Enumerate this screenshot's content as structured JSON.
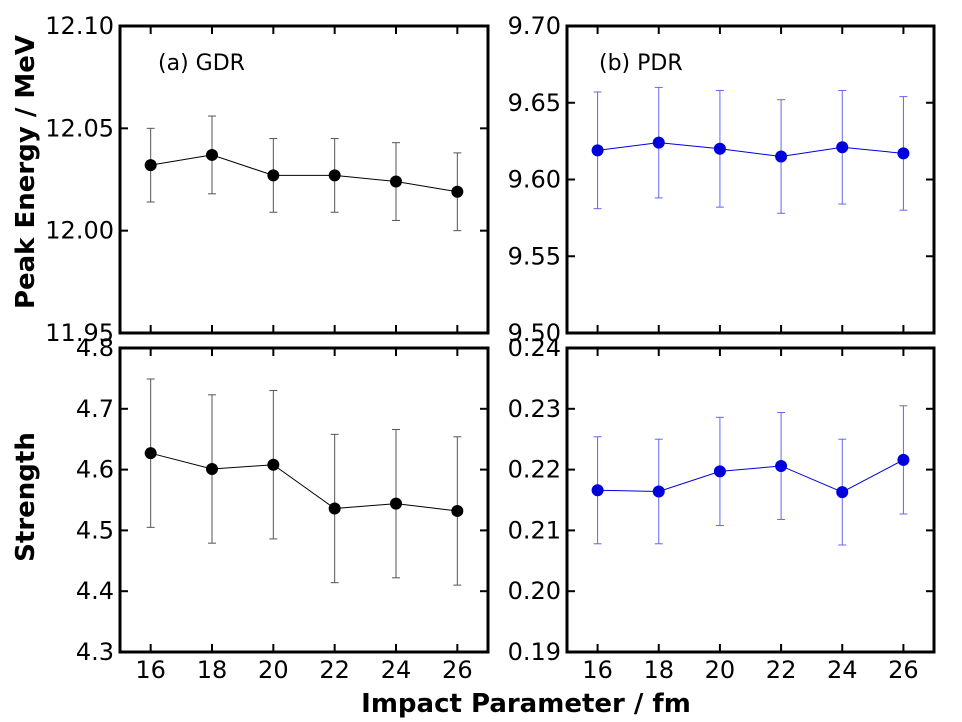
{
  "figure": {
    "xlabel": "Impact Parameter / fm",
    "ylabel_top": "Peak Energy / MeV",
    "ylabel_bottom": "Strength"
  },
  "chart_data": [
    {
      "type": "line",
      "id": "a",
      "label": "(a) GDR",
      "color": "#000000",
      "x": [
        16,
        18,
        20,
        22,
        24,
        26
      ],
      "y": [
        12.032,
        12.037,
        12.027,
        12.027,
        12.024,
        12.019
      ],
      "yerr": [
        0.018,
        0.019,
        0.018,
        0.018,
        0.019,
        0.019
      ],
      "xlim": [
        15,
        27
      ],
      "ylim": [
        11.95,
        12.1
      ],
      "xticks": [
        16,
        18,
        20,
        22,
        24,
        26
      ],
      "yticks": [
        11.95,
        12.0,
        12.05,
        12.1
      ],
      "ytick_labels": [
        "11.95",
        "12.00",
        "12.05",
        "12.10"
      ],
      "show_xtick_labels": false,
      "ylabel": "Peak Energy / MeV"
    },
    {
      "type": "line",
      "id": "b",
      "label": "(b) PDR",
      "color": "#0000dd",
      "x": [
        16,
        18,
        20,
        22,
        24,
        26
      ],
      "y": [
        9.619,
        9.624,
        9.62,
        9.615,
        9.621,
        9.617
      ],
      "yerr": [
        0.038,
        0.036,
        0.038,
        0.037,
        0.037,
        0.037
      ],
      "xlim": [
        15,
        27
      ],
      "ylim": [
        9.5,
        9.7
      ],
      "xticks": [
        16,
        18,
        20,
        22,
        24,
        26
      ],
      "yticks": [
        9.5,
        9.55,
        9.6,
        9.65,
        9.7
      ],
      "ytick_labels": [
        "9.50",
        "9.55",
        "9.60",
        "9.65",
        "9.70"
      ],
      "show_xtick_labels": false
    },
    {
      "type": "line",
      "id": "c",
      "label": "",
      "color": "#000000",
      "x": [
        16,
        18,
        20,
        22,
        24,
        26
      ],
      "y": [
        4.627,
        4.601,
        4.608,
        4.536,
        4.544,
        4.532
      ],
      "yerr": [
        0.122,
        0.122,
        0.122,
        0.122,
        0.122,
        0.122
      ],
      "xlim": [
        15,
        27
      ],
      "ylim": [
        4.3,
        4.8
      ],
      "xticks": [
        16,
        18,
        20,
        22,
        24,
        26
      ],
      "xtick_labels": [
        "16",
        "18",
        "20",
        "22",
        "24",
        "26"
      ],
      "yticks": [
        4.3,
        4.4,
        4.5,
        4.6,
        4.7,
        4.8
      ],
      "ytick_labels": [
        "4.3",
        "4.4",
        "4.5",
        "4.6",
        "4.7",
        "4.8"
      ],
      "show_xtick_labels": true,
      "ylabel": "Strength"
    },
    {
      "type": "line",
      "id": "d",
      "label": "",
      "color": "#0000dd",
      "x": [
        16,
        18,
        20,
        22,
        24,
        26
      ],
      "y": [
        0.2166,
        0.2164,
        0.2197,
        0.2206,
        0.2163,
        0.2216
      ],
      "yerr": [
        0.0088,
        0.0086,
        0.0089,
        0.0088,
        0.0087,
        0.0089
      ],
      "xlim": [
        15,
        27
      ],
      "ylim": [
        0.19,
        0.24
      ],
      "xticks": [
        16,
        18,
        20,
        22,
        24,
        26
      ],
      "xtick_labels": [
        "16",
        "18",
        "20",
        "22",
        "24",
        "26"
      ],
      "yticks": [
        0.19,
        0.2,
        0.21,
        0.22,
        0.23,
        0.24
      ],
      "ytick_labels": [
        "0.19",
        "0.20",
        "0.21",
        "0.22",
        "0.23",
        "0.24"
      ],
      "show_xtick_labels": true
    }
  ]
}
